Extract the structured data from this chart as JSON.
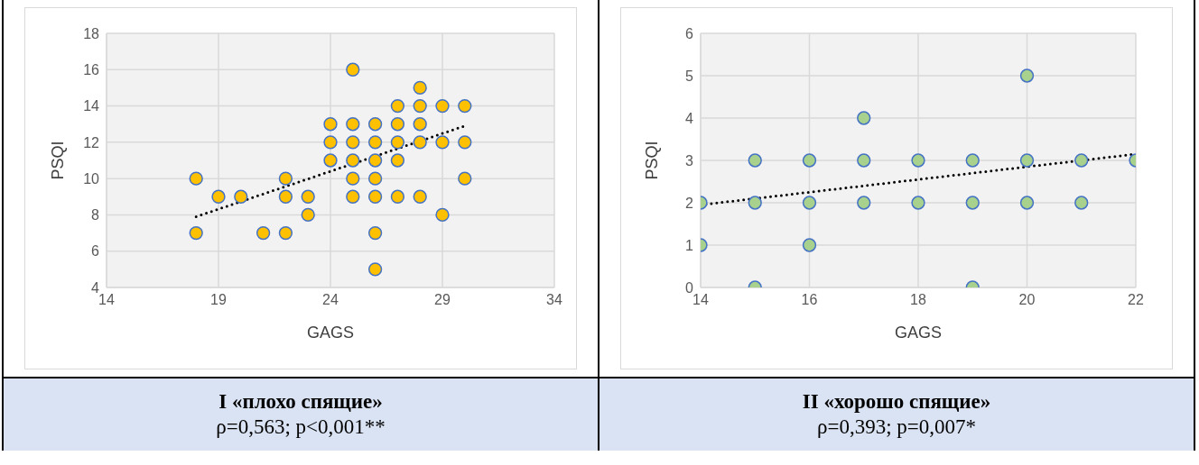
{
  "chart_data": [
    {
      "type": "scatter",
      "title": "I «плохо спящие»",
      "subtitle": "ρ=0,563; p<0,001**",
      "xlabel": "GAGS",
      "ylabel": "PSQI",
      "xlim": [
        14,
        34
      ],
      "xticks": [
        14,
        19,
        24,
        29,
        34
      ],
      "ylim": [
        4,
        18
      ],
      "yticks": [
        4,
        6,
        8,
        10,
        12,
        14,
        16,
        18
      ],
      "grid": true,
      "marker": "circle",
      "series": [
        {
          "color": "#ffc000",
          "x": [
            18,
            18,
            19,
            20,
            21,
            22,
            22,
            22,
            23,
            23,
            24,
            24,
            24,
            25,
            25,
            25,
            25,
            25,
            25,
            26,
            26,
            26,
            26,
            26,
            26,
            26,
            27,
            27,
            27,
            27,
            27,
            28,
            28,
            28,
            28,
            28,
            29,
            29,
            29,
            30,
            30,
            30
          ],
          "values": [
            10,
            7,
            9,
            9,
            7,
            10,
            9,
            7,
            9,
            8,
            13,
            12,
            11,
            16,
            13,
            12,
            11,
            10,
            9,
            13,
            12,
            11,
            10,
            9,
            7,
            5,
            14,
            13,
            12,
            11,
            9,
            15,
            14,
            13,
            12,
            9,
            14,
            12,
            8,
            14,
            12,
            10
          ]
        },
        {
          "type": "line",
          "color": "#000000",
          "line_style": "dotted",
          "marker": "none",
          "x": [
            18,
            30
          ],
          "values": [
            7.9,
            12.9
          ]
        }
      ]
    },
    {
      "type": "scatter",
      "title": "II «хорошо спящие»",
      "subtitle": "ρ=0,393; p=0,007*",
      "xlabel": "GAGS",
      "ylabel": "PSQI",
      "xlim": [
        14,
        22
      ],
      "xticks": [
        14,
        16,
        18,
        20,
        22
      ],
      "ylim": [
        0,
        6
      ],
      "yticks": [
        0,
        1,
        2,
        3,
        4,
        5,
        6
      ],
      "grid": true,
      "marker": "circle",
      "series": [
        {
          "color": "#a9d18e",
          "x": [
            14,
            14,
            15,
            15,
            15,
            16,
            16,
            16,
            17,
            17,
            17,
            18,
            18,
            19,
            19,
            19,
            20,
            20,
            20,
            21,
            21,
            22
          ],
          "values": [
            2,
            1,
            3,
            2,
            0,
            3,
            2,
            1,
            4,
            3,
            2,
            3,
            2,
            3,
            2,
            0,
            5,
            3,
            2,
            3,
            2,
            3
          ]
        },
        {
          "type": "line",
          "color": "#000000",
          "line_style": "dotted",
          "marker": "none",
          "x": [
            14,
            22
          ],
          "values": [
            1.95,
            3.15
          ]
        }
      ]
    }
  ]
}
